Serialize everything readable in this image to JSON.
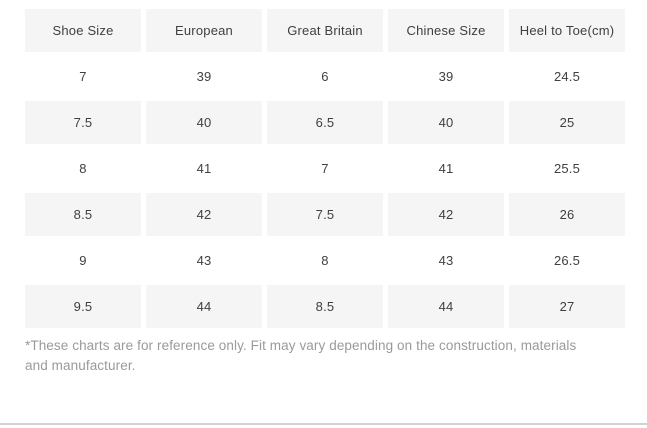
{
  "table": {
    "columns": [
      "Shoe Size",
      "European",
      "Great Britain",
      "Chinese Size",
      "Heel to Toe(cm)"
    ],
    "rows": [
      [
        "7",
        "39",
        "6",
        "39",
        "24.5"
      ],
      [
        "7.5",
        "40",
        "6.5",
        "40",
        "25"
      ],
      [
        "8",
        "41",
        "7",
        "41",
        "25.5"
      ],
      [
        "8.5",
        "42",
        "7.5",
        "42",
        "26"
      ],
      [
        "9",
        "43",
        "8",
        "43",
        "26.5"
      ],
      [
        "9.5",
        "44",
        "8.5",
        "44",
        "27"
      ]
    ]
  },
  "footnote": "*These charts are for reference only. Fit may vary depending on the construction, materials and manufacturer.",
  "colors": {
    "row_shaded_bg": "#f5f5f6",
    "cell_text": "#404040",
    "footnote_text": "#9a9a9a",
    "divider": "#d2d2d2"
  }
}
